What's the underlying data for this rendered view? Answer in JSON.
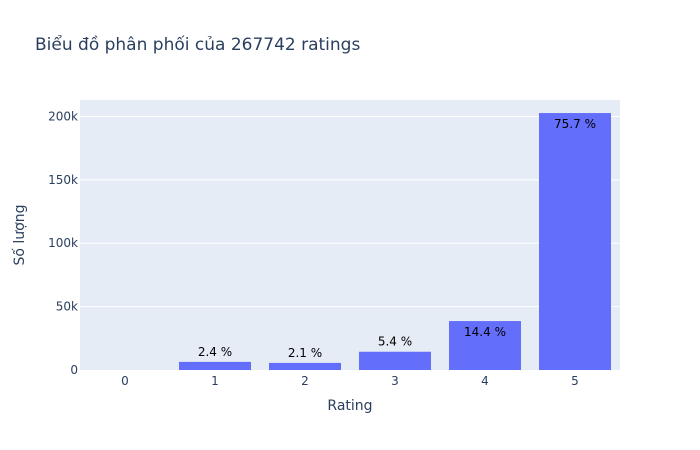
{
  "chart_data": {
    "type": "bar",
    "title": "Biểu đồ phân phối của 267742 ratings",
    "xlabel": "Rating",
    "ylabel": "Số lượng",
    "categories": [
      "0",
      "1",
      "2",
      "3",
      "4",
      "5"
    ],
    "values": [
      0,
      6400,
      5600,
      14400,
      38600,
      202700
    ],
    "data_labels": [
      "",
      "2.4 %",
      "2.1 %",
      "5.4 %",
      "14.4 %",
      "75.7 %"
    ],
    "ylim": [
      0,
      213000
    ],
    "yticks": [
      0,
      50000,
      100000,
      150000,
      200000
    ],
    "ytick_labels": [
      "0",
      "50k",
      "100k",
      "150k",
      "200k"
    ],
    "grid": true,
    "legend": "none",
    "colors": {
      "bar": "#636efa",
      "plot_background": "#e5ecf6",
      "grid": "#ffffff",
      "text": "#2a3f5f"
    }
  }
}
